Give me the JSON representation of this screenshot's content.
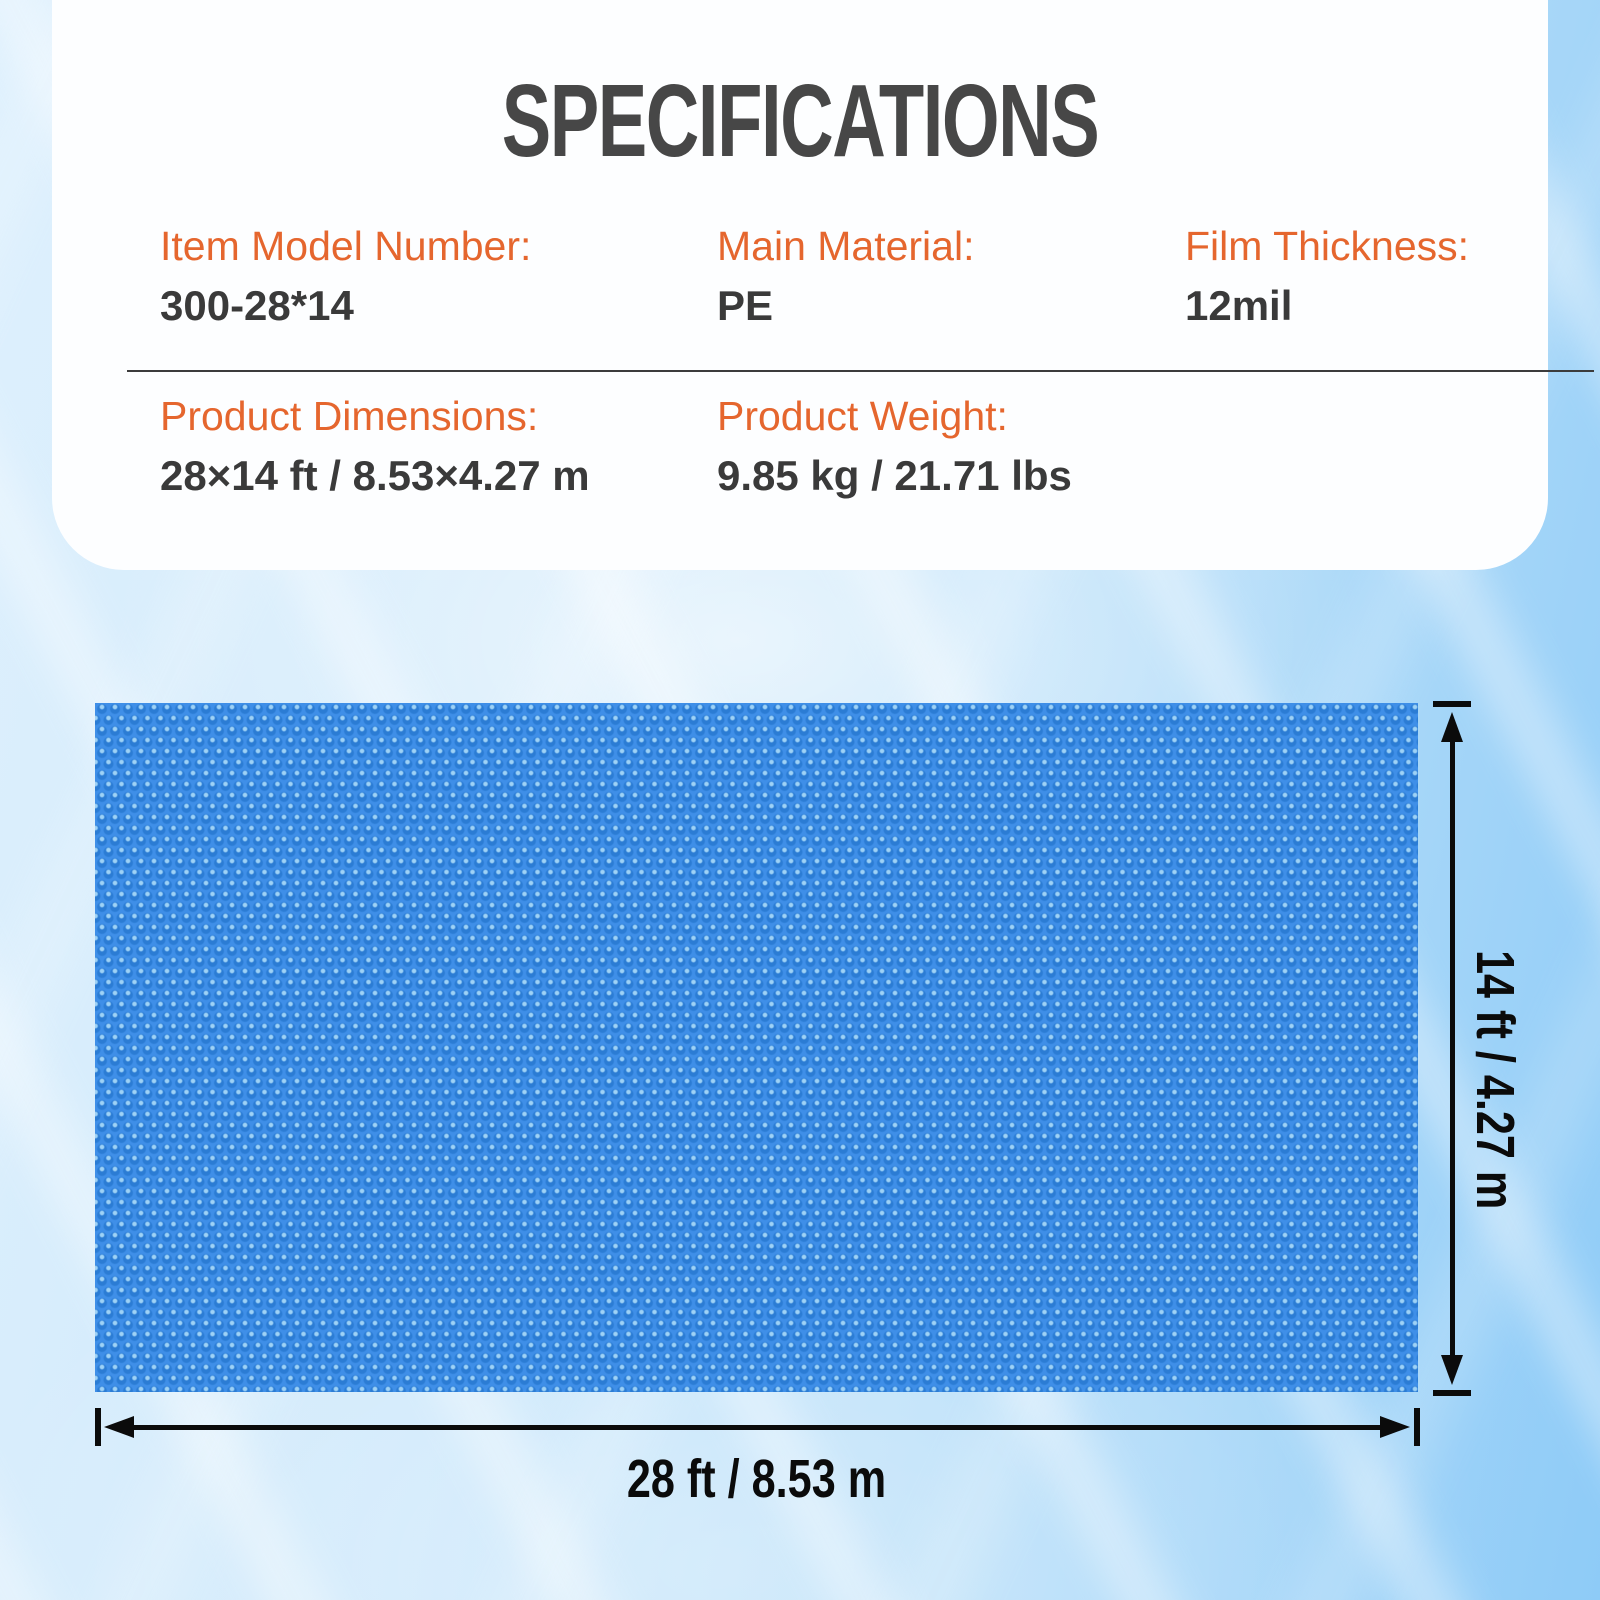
{
  "title": "SPECIFICATIONS",
  "specs": {
    "row1": [
      {
        "label": "Item Model Number:",
        "value": "300-28*14"
      },
      {
        "label": "Main Material:",
        "value": "PE"
      },
      {
        "label": "Film Thickness:",
        "value": "12mil"
      }
    ],
    "row2": [
      {
        "label": "Product Dimensions:",
        "value": "28×14 ft / 8.53×4.27 m"
      },
      {
        "label": "Product Weight:",
        "value": "9.85 kg / 21.71 lbs"
      }
    ]
  },
  "diagram": {
    "width_label": "28 ft / 8.53 m",
    "height_label": "14 ft / 4.27 m"
  },
  "colors": {
    "accent_orange": "#e5662e",
    "value_dark": "#3a3a3a",
    "title_gray": "#474747",
    "cover_blue": "#3f8fe8",
    "background_blue": "#cfe9fb"
  }
}
